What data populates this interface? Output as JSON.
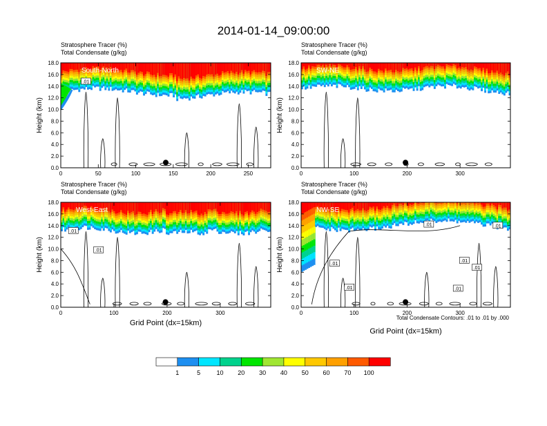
{
  "page": {
    "title": "2014-01-14_09:00:00"
  },
  "colorbar": {
    "levels": [
      "1",
      "5",
      "10",
      "20",
      "30",
      "40",
      "50",
      "60",
      "70",
      "100"
    ],
    "colors": [
      "#ffffff",
      "#1e8ff0",
      "#00e6ff",
      "#00d28c",
      "#00e600",
      "#a0e632",
      "#ffff00",
      "#ffc800",
      "#ffa000",
      "#ff5a00",
      "#ff0000"
    ]
  },
  "contour_note": "Total Condensate Contours: .01 to .01 by .000",
  "chart_data": [
    {
      "type": "heatmap",
      "title_line1": "Stratosphere Tracer   (%)",
      "title_line2": "Total Condensate   (g/kg)",
      "cross_section": "South-North",
      "xlabel": "",
      "ylabel": "Height (km)",
      "xlim": [
        0,
        280
      ],
      "ylim": [
        0,
        18
      ],
      "xticks": [
        "0",
        "50",
        "100",
        "150",
        "200",
        "250"
      ],
      "yticks": [
        "0.0",
        "2.0",
        "4.0",
        "6.0",
        "8.0",
        "10.0",
        "12.0",
        "14.0",
        "16.0",
        "18.0"
      ],
      "marker_x": 140,
      "marker_y": 0.9,
      "contour_labels": [
        ".01"
      ]
    },
    {
      "type": "heatmap",
      "title_line1": "Stratosphere Tracer   (%)",
      "title_line2": "Total Condensate   (g/kg)",
      "cross_section": "SW-NE",
      "xlabel": "",
      "ylabel": "Height (km)",
      "xlim": [
        0,
        395
      ],
      "ylim": [
        0,
        18
      ],
      "xticks": [
        "0",
        "100",
        "200",
        "300"
      ],
      "yticks": [
        "0.0",
        "2.0",
        "4.0",
        "6.0",
        "8.0",
        "10.0",
        "12.0",
        "14.0",
        "16.0",
        "18.0"
      ],
      "marker_x": 197,
      "marker_y": 0.9,
      "contour_labels": []
    },
    {
      "type": "heatmap",
      "title_line1": "Stratosphere Tracer   (%)",
      "title_line2": "Total Condensate   (g/kg)",
      "cross_section": "West-East",
      "xlabel": "Grid Point (dx=15km)",
      "ylabel": "Height (km)",
      "xlim": [
        0,
        395
      ],
      "ylim": [
        0,
        18
      ],
      "xticks": [
        "0",
        "100",
        "200",
        "300"
      ],
      "yticks": [
        "0.0",
        "2.0",
        "4.0",
        "6.0",
        "8.0",
        "10.0",
        "12.0",
        "14.0",
        "16.0",
        "18.0"
      ],
      "marker_x": 197,
      "marker_y": 0.9,
      "contour_labels": [
        ".01",
        ".01"
      ]
    },
    {
      "type": "heatmap",
      "title_line1": "Stratosphere Tracer   (%)",
      "title_line2": "Total Condensate   (g/kg)",
      "cross_section": "NW-SE",
      "xlabel": "Grid Point (dx=15km)",
      "ylabel": "Height (km)",
      "xlim": [
        0,
        395
      ],
      "ylim": [
        0,
        18
      ],
      "xticks": [
        "0",
        "100",
        "200",
        "300"
      ],
      "yticks": [
        "0.0",
        "2.0",
        "4.0",
        "6.0",
        "8.0",
        "10.0",
        "12.0",
        "14.0",
        "16.0",
        "18.0"
      ],
      "marker_x": 197,
      "marker_y": 0.9,
      "contour_labels": [
        ".01",
        ".01",
        ".01",
        ".01",
        ".01",
        ".01",
        ".01"
      ]
    }
  ]
}
